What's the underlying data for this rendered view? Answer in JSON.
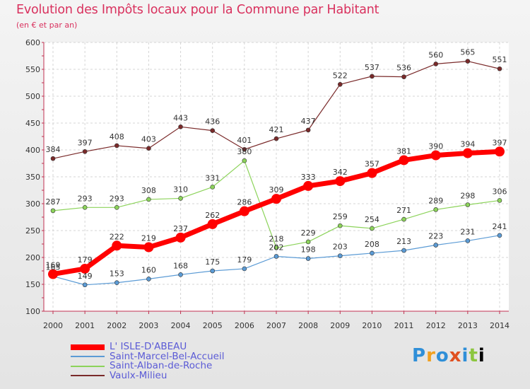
{
  "chart_data": {
    "type": "line",
    "title": "Evolution des Impôts locaux pour la Commune par Habitant",
    "subtitle": "(en € et par an)",
    "xlabel": "",
    "ylabel": "",
    "categories": [
      "2000",
      "2001",
      "2002",
      "2003",
      "2004",
      "2005",
      "2006",
      "2007",
      "2008",
      "2009",
      "2010",
      "2011",
      "2012",
      "2013",
      "2014"
    ],
    "ylim": [
      100,
      600
    ],
    "yticks": [
      100,
      150,
      200,
      250,
      300,
      350,
      400,
      450,
      500,
      550,
      600
    ],
    "grid": true,
    "legend_position": "bottom-left",
    "series": [
      {
        "name": "L' ISLE-D'ABEAU",
        "color": "#ff0000",
        "values": [
          169,
          179,
          222,
          219,
          237,
          262,
          286,
          309,
          333,
          342,
          357,
          381,
          390,
          394,
          397
        ]
      },
      {
        "name": "Saint-Marcel-Bel-Accueil",
        "color": "#5b9bd5",
        "values": [
          165,
          149,
          153,
          160,
          168,
          175,
          179,
          202,
          198,
          203,
          208,
          213,
          223,
          231,
          241
        ]
      },
      {
        "name": "Saint-Alban-de-Roche",
        "color": "#8cd35a",
        "values": [
          287,
          293,
          293,
          308,
          310,
          331,
          380,
          218,
          229,
          259,
          254,
          271,
          289,
          298,
          306
        ]
      },
      {
        "name": "Vaulx-Milieu",
        "color": "#7a2a2a",
        "values": [
          384,
          397,
          408,
          403,
          443,
          436,
          401,
          421,
          437,
          522,
          537,
          536,
          560,
          565,
          551
        ]
      }
    ]
  },
  "logo": {
    "letters": [
      "P",
      "r",
      "o",
      "x",
      "i",
      "t",
      "i"
    ]
  }
}
